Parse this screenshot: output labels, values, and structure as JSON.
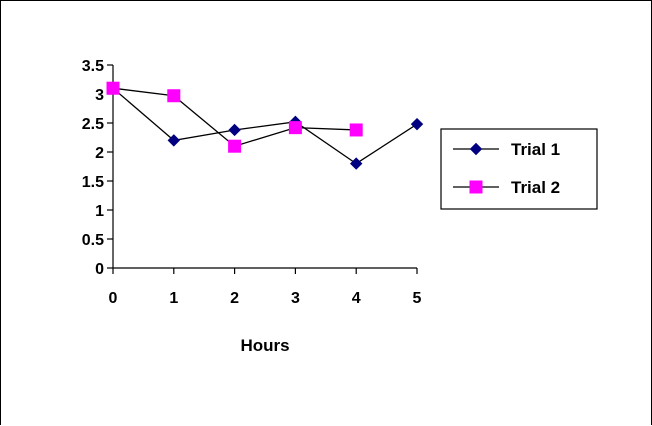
{
  "chart_data": {
    "type": "line",
    "title": "",
    "xlabel": "Hours",
    "ylabel": "",
    "x": [
      0,
      1,
      2,
      3,
      4,
      5
    ],
    "xlim": [
      0,
      5
    ],
    "ylim": [
      0,
      3.5
    ],
    "xticks": [
      "0",
      "1",
      "2",
      "3",
      "4",
      "5"
    ],
    "yticks": [
      "0",
      "0.5",
      "1",
      "1.5",
      "2",
      "2.5",
      "3",
      "3.5"
    ],
    "grid": false,
    "legend_position": "right",
    "series": [
      {
        "name": "Trial 1",
        "color": "#000080",
        "marker": "diamond",
        "x": [
          0,
          1,
          2,
          3,
          4,
          5
        ],
        "values": [
          3.1,
          2.2,
          2.38,
          2.52,
          1.8,
          2.48
        ]
      },
      {
        "name": "Trial 2",
        "color": "#ff00ff",
        "marker": "square",
        "x": [
          0,
          1,
          2,
          3,
          4
        ],
        "values": [
          3.1,
          2.97,
          2.1,
          2.42,
          2.38
        ]
      }
    ]
  }
}
